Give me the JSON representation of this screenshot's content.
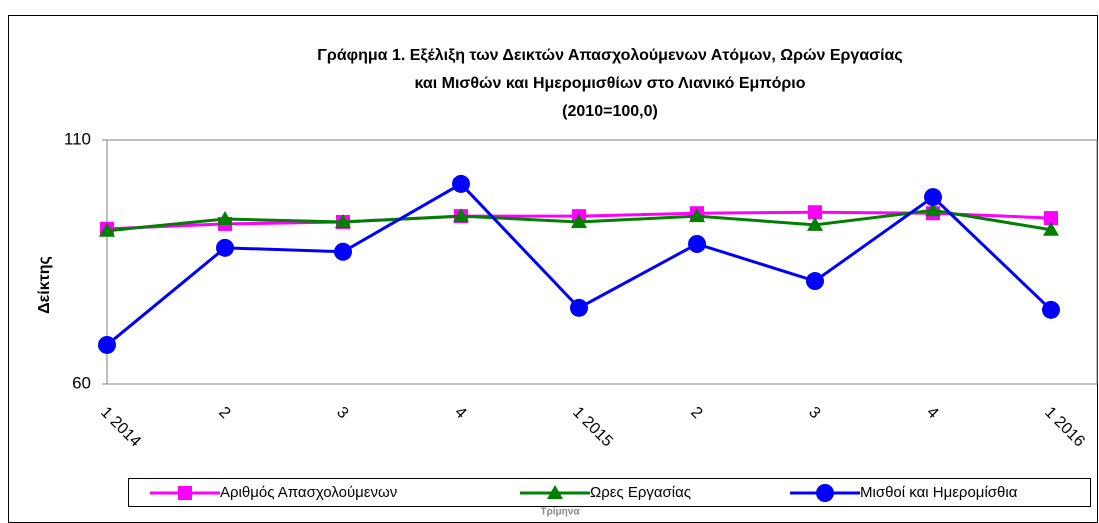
{
  "chart_data": {
    "type": "line",
    "title": [
      "Γράφημα 1. Εξέλιξη των Δεικτών Απασχολούμενων Ατόμων, Ωρών Εργασίας",
      "και Μισθών και Ημερομισθίων στο Λιανικό Εμπόριο",
      "(2010=100,0)"
    ],
    "y_label": "Δείκτης",
    "x_label": "Τρίμηνα",
    "categories": [
      "1 2014",
      "2",
      "3",
      "4",
      "1 2015",
      "2",
      "3",
      "4",
      "1 2016"
    ],
    "series": [
      {
        "name": "Αριθμός Απασχολούμενων",
        "color": "#ff00ff",
        "marker": "square",
        "values": [
          91.8,
          92.8,
          93.2,
          94.4,
          94.4,
          95.0,
          95.2,
          95.0,
          94.0
        ]
      },
      {
        "name": "Ωρες Εργασίας",
        "color": "#008000",
        "marker": "triangle",
        "values": [
          91.4,
          93.8,
          93.2,
          94.4,
          93.2,
          94.4,
          92.6,
          95.6,
          91.6
        ]
      },
      {
        "name": "Μισθοί και Ημερομίσθια",
        "color": "#0000ff",
        "marker": "circle",
        "values": [
          68.0,
          87.9,
          87.1,
          101.0,
          75.6,
          88.7,
          81.1,
          98.3,
          75.2
        ]
      }
    ],
    "ylim": [
      60,
      110
    ],
    "yticks": [
      60,
      110
    ],
    "grid": false,
    "legend": "bottom"
  }
}
